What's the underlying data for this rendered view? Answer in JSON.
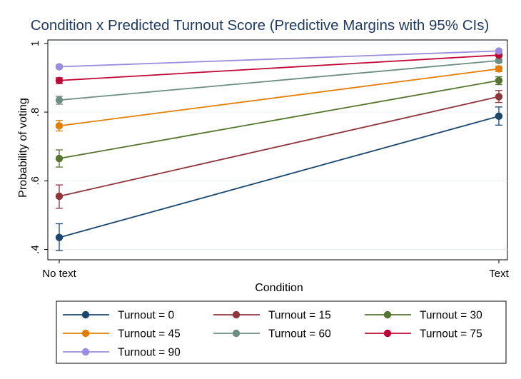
{
  "chart_data": {
    "type": "line",
    "title": "Condition x Predicted Turnout Score (Predictive Margins with 95% CIs)",
    "xlabel": "Condition",
    "ylabel": "Probability of voting",
    "categories": [
      "No text",
      "Text"
    ],
    "ylim": [
      0.37,
      1.01
    ],
    "yticks": [
      {
        "value": 0.4,
        "label": ".4"
      },
      {
        "value": 0.6,
        "label": ".6"
      },
      {
        "value": 0.8,
        "label": ".8"
      },
      {
        "value": 1.0,
        "label": "1"
      }
    ],
    "grid": true,
    "legend_position": "bottom",
    "series": [
      {
        "name": "Turnout = 0",
        "color": "#1a476f",
        "values": [
          0.435,
          0.788
        ],
        "ci_low": [
          0.397,
          0.762
        ],
        "ci_high": [
          0.475,
          0.815
        ]
      },
      {
        "name": "Turnout = 15",
        "color": "#90353b",
        "values": [
          0.555,
          0.845
        ],
        "ci_low": [
          0.52,
          0.828
        ],
        "ci_high": [
          0.588,
          0.863
        ]
      },
      {
        "name": "Turnout = 30",
        "color": "#55752f",
        "values": [
          0.665,
          0.892
        ],
        "ci_low": [
          0.64,
          0.88
        ],
        "ci_high": [
          0.69,
          0.903
        ]
      },
      {
        "name": "Turnout = 45",
        "color": "#e37e00",
        "values": [
          0.76,
          0.926
        ],
        "ci_low": [
          0.745,
          0.918
        ],
        "ci_high": [
          0.776,
          0.934
        ]
      },
      {
        "name": "Turnout = 60",
        "color": "#6e8e84",
        "values": [
          0.835,
          0.95
        ],
        "ci_low": [
          0.823,
          0.944
        ],
        "ci_high": [
          0.846,
          0.955
        ]
      },
      {
        "name": "Turnout = 75",
        "color": "#c10534",
        "values": [
          0.892,
          0.966
        ],
        "ci_low": [
          0.883,
          0.962
        ],
        "ci_high": [
          0.9,
          0.97
        ]
      },
      {
        "name": "Turnout = 90",
        "color": "#9a8ce0",
        "values": [
          0.932,
          0.978
        ],
        "ci_low": [
          0.927,
          0.975
        ],
        "ci_high": [
          0.937,
          0.981
        ]
      }
    ]
  }
}
